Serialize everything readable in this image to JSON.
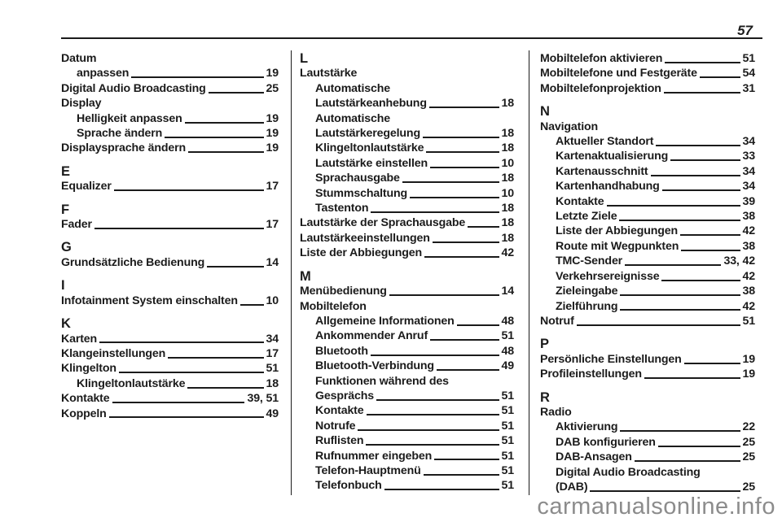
{
  "page": {
    "number": "57"
  },
  "watermark": {
    "text": "carmanualsonline.info"
  },
  "index": {
    "columns": [
      {
        "sections": [
          {
            "letter": null,
            "entries": [
              {
                "label": "Datum",
                "page": null,
                "indent": 0
              },
              {
                "label": "anpassen",
                "page": "19",
                "indent": 1
              },
              {
                "label": "Digital Audio Broadcasting",
                "page": "25",
                "indent": 0
              },
              {
                "label": "Display",
                "page": null,
                "indent": 0
              },
              {
                "label": "Helligkeit anpassen",
                "page": "19",
                "indent": 1
              },
              {
                "label": "Sprache ändern",
                "page": "19",
                "indent": 1
              },
              {
                "label": "Displaysprache ändern",
                "page": "19",
                "indent": 0
              }
            ]
          },
          {
            "letter": "E",
            "entries": [
              {
                "label": "Equalizer",
                "page": "17",
                "indent": 0
              }
            ]
          },
          {
            "letter": "F",
            "entries": [
              {
                "label": "Fader",
                "page": "17",
                "indent": 0
              }
            ]
          },
          {
            "letter": "G",
            "entries": [
              {
                "label": "Grundsätzliche Bedienung",
                "page": "14",
                "indent": 0
              }
            ]
          },
          {
            "letter": "I",
            "entries": [
              {
                "label": "Infotainment System einschalten",
                "page": "10",
                "indent": 0
              }
            ]
          },
          {
            "letter": "K",
            "entries": [
              {
                "label": "Karten",
                "page": "34",
                "indent": 0
              },
              {
                "label": "Klangeinstellungen",
                "page": "17",
                "indent": 0
              },
              {
                "label": "Klingelton",
                "page": "51",
                "indent": 0
              },
              {
                "label": "Klingeltonlautstärke",
                "page": "18",
                "indent": 1
              },
              {
                "label": "Kontakte",
                "page": "39, 51",
                "indent": 0
              },
              {
                "label": "Koppeln",
                "page": "49",
                "indent": 0
              }
            ]
          }
        ]
      },
      {
        "sections": [
          {
            "letter": "L",
            "entries": [
              {
                "label": "Lautstärke",
                "page": null,
                "indent": 0
              },
              {
                "label": "Automatische",
                "page": null,
                "indent": 1
              },
              {
                "label": "Lautstärkeanhebung",
                "page": "18",
                "indent": 1
              },
              {
                "label": "Automatische",
                "page": null,
                "indent": 1
              },
              {
                "label": "Lautstärkeregelung",
                "page": "18",
                "indent": 1
              },
              {
                "label": "Klingeltonlautstärke",
                "page": "18",
                "indent": 1
              },
              {
                "label": "Lautstärke einstellen",
                "page": "10",
                "indent": 1
              },
              {
                "label": "Sprachausgabe",
                "page": "18",
                "indent": 1
              },
              {
                "label": "Stummschaltung",
                "page": "10",
                "indent": 1
              },
              {
                "label": "Tastenton",
                "page": "18",
                "indent": 1
              },
              {
                "label": "Lautstärke der Sprachausgabe",
                "page": "18",
                "indent": 0
              },
              {
                "label": "Lautstärkeeinstellungen",
                "page": "18",
                "indent": 0
              },
              {
                "label": "Liste der Abbiegungen",
                "page": "42",
                "indent": 0
              }
            ]
          },
          {
            "letter": "M",
            "entries": [
              {
                "label": "Menübedienung",
                "page": "14",
                "indent": 0
              },
              {
                "label": "Mobiltelefon",
                "page": null,
                "indent": 0
              },
              {
                "label": "Allgemeine Informationen",
                "page": "48",
                "indent": 1
              },
              {
                "label": "Ankommender Anruf",
                "page": "51",
                "indent": 1
              },
              {
                "label": "Bluetooth",
                "page": "48",
                "indent": 1
              },
              {
                "label": "Bluetooth-Verbindung",
                "page": "49",
                "indent": 1
              },
              {
                "label": "Funktionen während des",
                "page": null,
                "indent": 1
              },
              {
                "label": "Gesprächs",
                "page": "51",
                "indent": 1
              },
              {
                "label": "Kontakte",
                "page": "51",
                "indent": 1
              },
              {
                "label": "Notrufe",
                "page": "51",
                "indent": 1
              },
              {
                "label": "Ruflisten",
                "page": "51",
                "indent": 1
              },
              {
                "label": "Rufnummer eingeben",
                "page": "51",
                "indent": 1
              },
              {
                "label": "Telefon-Hauptmenü",
                "page": "51",
                "indent": 1
              },
              {
                "label": "Telefonbuch",
                "page": "51",
                "indent": 1
              }
            ]
          }
        ]
      },
      {
        "sections": [
          {
            "letter": null,
            "entries": [
              {
                "label": "Mobiltelefon aktivieren",
                "page": "51",
                "indent": 0
              },
              {
                "label": "Mobiltelefone und Festgeräte",
                "page": "54",
                "indent": 0
              },
              {
                "label": "Mobiltelefonprojektion",
                "page": "31",
                "indent": 0
              }
            ]
          },
          {
            "letter": "N",
            "entries": [
              {
                "label": "Navigation",
                "page": null,
                "indent": 0
              },
              {
                "label": "Aktueller Standort",
                "page": "34",
                "indent": 1
              },
              {
                "label": "Kartenaktualisierung",
                "page": "33",
                "indent": 1
              },
              {
                "label": "Kartenausschnitt",
                "page": "34",
                "indent": 1
              },
              {
                "label": "Kartenhandhabung",
                "page": "34",
                "indent": 1
              },
              {
                "label": "Kontakte",
                "page": "39",
                "indent": 1
              },
              {
                "label": "Letzte Ziele",
                "page": "38",
                "indent": 1
              },
              {
                "label": "Liste der Abbiegungen",
                "page": "42",
                "indent": 1
              },
              {
                "label": "Route mit Wegpunkten",
                "page": "38",
                "indent": 1
              },
              {
                "label": "TMC-Sender",
                "page": "33, 42",
                "indent": 1
              },
              {
                "label": "Verkehrsereignisse",
                "page": "42",
                "indent": 1
              },
              {
                "label": "Zieleingabe",
                "page": "38",
                "indent": 1
              },
              {
                "label": "Zielführung",
                "page": "42",
                "indent": 1
              },
              {
                "label": "Notruf",
                "page": "51",
                "indent": 0
              }
            ]
          },
          {
            "letter": "P",
            "entries": [
              {
                "label": "Persönliche Einstellungen",
                "page": "19",
                "indent": 0
              },
              {
                "label": "Profileinstellungen",
                "page": "19",
                "indent": 0
              }
            ]
          },
          {
            "letter": "R",
            "entries": [
              {
                "label": "Radio",
                "page": null,
                "indent": 0
              },
              {
                "label": "Aktivierung",
                "page": "22",
                "indent": 1
              },
              {
                "label": "DAB konfigurieren",
                "page": "25",
                "indent": 1
              },
              {
                "label": "DAB-Ansagen",
                "page": "25",
                "indent": 1
              },
              {
                "label": "Digital Audio Broadcasting",
                "page": null,
                "indent": 1
              },
              {
                "label": "(DAB)",
                "page": "25",
                "indent": 1
              }
            ]
          }
        ]
      }
    ]
  }
}
